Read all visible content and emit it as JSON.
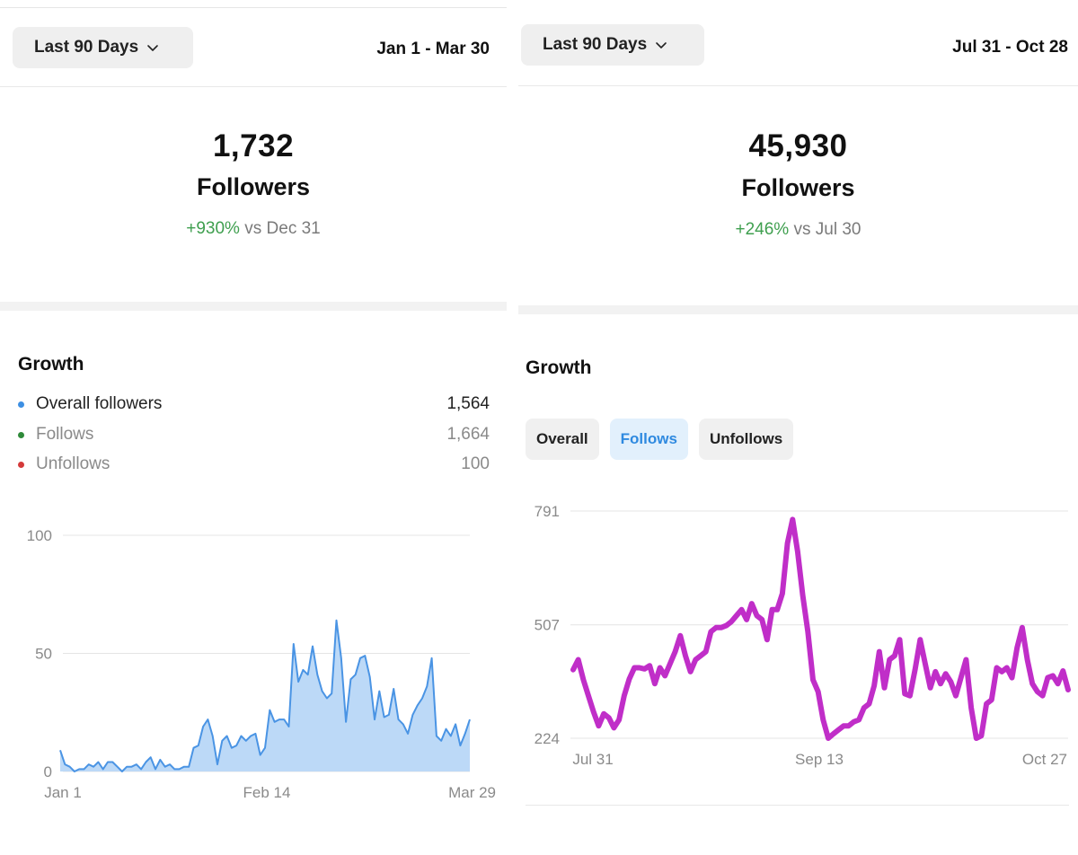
{
  "left": {
    "range_button": "Last 90 Days",
    "date_range": "Jan 1 - Mar 30",
    "followers_count": "1,732",
    "followers_label": "Followers",
    "delta_pct": "+930%",
    "delta_suffix": "vs Dec 31",
    "growth_title": "Growth",
    "legend": [
      {
        "label": "Overall followers",
        "value": "1,564",
        "color": "#3d8fe3"
      },
      {
        "label": "Follows",
        "value": "1,664",
        "color": "#2f8a3a"
      },
      {
        "label": "Unfollows",
        "value": "100",
        "color": "#d43a3a"
      }
    ]
  },
  "right": {
    "range_button": "Last 90 Days",
    "date_range": "Jul 31 - Oct 28",
    "followers_count": "45,930",
    "followers_label": "Followers",
    "delta_pct": "+246%",
    "delta_suffix": "vs Jul 30",
    "growth_title": "Growth",
    "tabs": [
      {
        "label": "Overall",
        "active": false
      },
      {
        "label": "Follows",
        "active": true
      },
      {
        "label": "Unfollows",
        "active": false
      }
    ]
  },
  "icons": {
    "range_chevron": "chevron-down-icon"
  },
  "colors": {
    "area_line": "#4a94e4",
    "area_fill": "#bcd9f7",
    "follows_line": "#c02ec8",
    "positive": "#3f9f4f",
    "active_tab": "#2f8ae0"
  },
  "chart_data": [
    {
      "type": "area",
      "title": "",
      "xlabel": "",
      "ylabel": "",
      "x_tick_labels": [
        "Jan 1",
        "Feb 14",
        "Mar 29"
      ],
      "y_ticks": [
        0,
        50,
        100
      ],
      "ylim": [
        0,
        100
      ],
      "grid": true,
      "series": [
        {
          "values": [
            9,
            3,
            2,
            0,
            1,
            1,
            3,
            2,
            4,
            1,
            4,
            4,
            2,
            0,
            2,
            2,
            3,
            1,
            4,
            6,
            1,
            5,
            2,
            3,
            1,
            1,
            2,
            2,
            10,
            11,
            19,
            22,
            15,
            3,
            13,
            15,
            10,
            11,
            15,
            13,
            15,
            16,
            7,
            10,
            26,
            21,
            22,
            22,
            19,
            54,
            38,
            43,
            41,
            53,
            41,
            34,
            31,
            33,
            64,
            48,
            21,
            39,
            41,
            48,
            49,
            40,
            22,
            34,
            23,
            24,
            35,
            22,
            20,
            16,
            24,
            28,
            31,
            36,
            48,
            15,
            13,
            18,
            15,
            20,
            11,
            16,
            22
          ]
        }
      ]
    },
    {
      "type": "line",
      "title": "",
      "xlabel": "",
      "ylabel": "",
      "x_tick_labels": [
        "Jul 31",
        "Sep 13",
        "Oct 27"
      ],
      "y_ticks": [
        224,
        507,
        791
      ],
      "ylim": [
        224,
        791
      ],
      "grid": true,
      "series": [
        {
          "name": "Follows",
          "values": [
            395,
            420,
            370,
            330,
            290,
            255,
            285,
            275,
            250,
            270,
            330,
            372,
            400,
            400,
            397,
            405,
            360,
            400,
            380,
            410,
            440,
            480,
            430,
            390,
            420,
            430,
            440,
            490,
            500,
            500,
            505,
            515,
            530,
            545,
            520,
            560,
            530,
            520,
            470,
            545,
            545,
            585,
            711,
            770,
            690,
            580,
            490,
            370,
            340,
            270,
            224,
            235,
            245,
            255,
            255,
            265,
            270,
            300,
            310,
            355,
            440,
            350,
            420,
            430,
            470,
            335,
            330,
            395,
            470,
            410,
            350,
            390,
            360,
            385,
            365,
            330,
            375,
            420,
            300,
            224,
            230,
            310,
            320,
            400,
            390,
            400,
            375,
            450,
            500,
            420,
            360,
            340,
            330,
            375,
            380,
            360,
            392,
            345
          ]
        }
      ]
    }
  ]
}
